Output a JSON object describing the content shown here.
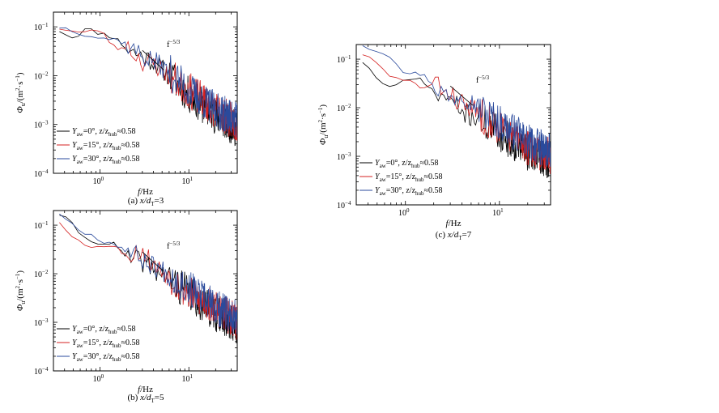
{
  "chart_data": [
    {
      "type": "line",
      "caption": "(a) x/d_T=3",
      "caption_text": {
        "prefix": "(a) ",
        "var": "x/d",
        "sub": "T",
        "suffix": "=3"
      },
      "xlabel": "f/Hz",
      "ylabel": "Φu/(m²·s⁻¹)",
      "xscale": "log",
      "yscale": "log",
      "xlim": [
        0.3,
        35
      ],
      "ylim": [
        0.0001,
        0.2
      ],
      "xticks": [
        "10^0",
        "10^1"
      ],
      "yticks": [
        "10^-4",
        "10^-3",
        "10^-2",
        "10^-1"
      ],
      "legend_position": "bottom-left",
      "annotation": {
        "text": "f^-5/3",
        "base": "f",
        "exp": "−5/3",
        "slope": -1.6667,
        "x1": 3.0,
        "x2": 5.2,
        "y1": 0.033
      },
      "series": [
        {
          "name": "Yaw=0°, z/zhub≈0.58",
          "label": {
            "pre": "Y",
            "sub1": "aw",
            "mid": "=0°, z/z",
            "sub2": "hub",
            "post": "≈0.58"
          },
          "color": "#000000",
          "seed": 11,
          "anchors": [
            [
              0.35,
              0.085
            ],
            [
              0.5,
              0.06
            ],
            [
              0.7,
              0.09
            ],
            [
              1.0,
              0.075
            ],
            [
              1.5,
              0.06
            ],
            [
              2.0,
              0.035
            ],
            [
              3.0,
              0.025
            ],
            [
              4.0,
              0.02
            ],
            [
              6.0,
              0.01
            ],
            [
              10.0,
              0.004
            ],
            [
              20.0,
              0.0015
            ],
            [
              35.0,
              0.0008
            ]
          ]
        },
        {
          "name": "Yaw=15°, z/zhub≈0.58",
          "label": {
            "pre": "Y",
            "sub1": "aw",
            "mid": "=15°, z/z",
            "sub2": "hub",
            "post": "≈0.58"
          },
          "color": "#d42020",
          "seed": 23,
          "anchors": [
            [
              0.35,
              0.095
            ],
            [
              0.5,
              0.08
            ],
            [
              0.7,
              0.075
            ],
            [
              1.0,
              0.09
            ],
            [
              1.5,
              0.035
            ],
            [
              2.0,
              0.04
            ],
            [
              3.0,
              0.02
            ],
            [
              4.0,
              0.018
            ],
            [
              6.0,
              0.01
            ],
            [
              10.0,
              0.005
            ],
            [
              20.0,
              0.002
            ],
            [
              35.0,
              0.001
            ]
          ]
        },
        {
          "name": "Yaw=30°, z/zhub≈0.58",
          "label": {
            "pre": "Y",
            "sub1": "aw",
            "mid": "=30°, z/z",
            "sub2": "hub",
            "post": "≈0.58"
          },
          "color": "#2a4a9c",
          "seed": 37,
          "anchors": [
            [
              0.35,
              0.1
            ],
            [
              0.5,
              0.085
            ],
            [
              0.7,
              0.07
            ],
            [
              1.0,
              0.06
            ],
            [
              1.5,
              0.055
            ],
            [
              2.0,
              0.045
            ],
            [
              3.0,
              0.025
            ],
            [
              4.0,
              0.02
            ],
            [
              6.0,
              0.012
            ],
            [
              10.0,
              0.005
            ],
            [
              20.0,
              0.002
            ],
            [
              35.0,
              0.0012
            ]
          ]
        }
      ]
    },
    {
      "type": "line",
      "caption": "(b) x/d_T=5",
      "caption_text": {
        "prefix": "(b) ",
        "var": "x/d",
        "sub": "T",
        "suffix": "=5"
      },
      "xlabel": "f/Hz",
      "ylabel": "Φu/(m²·s⁻¹)",
      "xscale": "log",
      "yscale": "log",
      "xlim": [
        0.3,
        35
      ],
      "ylim": [
        0.0001,
        0.2
      ],
      "xticks": [
        "10^0",
        "10^1"
      ],
      "yticks": [
        "10^-4",
        "10^-3",
        "10^-2",
        "10^-1"
      ],
      "legend_position": "bottom-left",
      "annotation": {
        "text": "f^-5/3",
        "base": "f",
        "exp": "−5/3",
        "slope": -1.6667,
        "x1": 3.0,
        "x2": 5.2,
        "y1": 0.028
      },
      "series": [
        {
          "name": "Yaw=0°, z/zhub≈0.58",
          "label": {
            "pre": "Y",
            "sub1": "aw",
            "mid": "=0°, z/z",
            "sub2": "hub",
            "post": "≈0.58"
          },
          "color": "#000000",
          "seed": 41,
          "anchors": [
            [
              0.35,
              0.17
            ],
            [
              0.5,
              0.1
            ],
            [
              0.7,
              0.05
            ],
            [
              1.0,
              0.045
            ],
            [
              1.5,
              0.04
            ],
            [
              2.0,
              0.02
            ],
            [
              3.0,
              0.018
            ],
            [
              4.0,
              0.012
            ],
            [
              6.0,
              0.008
            ],
            [
              10.0,
              0.004
            ],
            [
              20.0,
              0.0015
            ],
            [
              35.0,
              0.0008
            ]
          ]
        },
        {
          "name": "Yaw=15°, z/zhub≈0.58",
          "label": {
            "pre": "Y",
            "sub1": "aw",
            "mid": "=15°, z/z",
            "sub2": "hub",
            "post": "≈0.58"
          },
          "color": "#d42020",
          "seed": 53,
          "anchors": [
            [
              0.35,
              0.12
            ],
            [
              0.5,
              0.06
            ],
            [
              0.7,
              0.035
            ],
            [
              1.0,
              0.04
            ],
            [
              1.5,
              0.035
            ],
            [
              2.0,
              0.025
            ],
            [
              3.0,
              0.03
            ],
            [
              4.0,
              0.015
            ],
            [
              6.0,
              0.009
            ],
            [
              10.0,
              0.004
            ],
            [
              20.0,
              0.002
            ],
            [
              35.0,
              0.001
            ]
          ]
        },
        {
          "name": "Yaw=30°, z/zhub≈0.58",
          "label": {
            "pre": "Y",
            "sub1": "aw",
            "mid": "=30°, z/z",
            "sub2": "hub",
            "post": "≈0.58"
          },
          "color": "#2a4a9c",
          "seed": 67,
          "anchors": [
            [
              0.35,
              0.18
            ],
            [
              0.5,
              0.1
            ],
            [
              0.7,
              0.07
            ],
            [
              1.0,
              0.05
            ],
            [
              1.5,
              0.04
            ],
            [
              2.0,
              0.03
            ],
            [
              3.0,
              0.02
            ],
            [
              4.0,
              0.015
            ],
            [
              6.0,
              0.01
            ],
            [
              10.0,
              0.005
            ],
            [
              20.0,
              0.002
            ],
            [
              35.0,
              0.0012
            ]
          ]
        }
      ]
    },
    {
      "type": "line",
      "caption": "(c) x/d_T=7",
      "caption_text": {
        "prefix": "(c) ",
        "var": "x/d",
        "sub": "T",
        "suffix": "=7"
      },
      "xlabel": "f/Hz",
      "ylabel": "Φu/(m²·s⁻¹)",
      "xscale": "log",
      "yscale": "log",
      "xlim": [
        0.3,
        35
      ],
      "ylim": [
        0.0001,
        0.2
      ],
      "xticks": [
        "10^0",
        "10^1"
      ],
      "yticks": [
        "10^-4",
        "10^-3",
        "10^-2",
        "10^-1"
      ],
      "legend_position": "bottom-left",
      "annotation": {
        "text": "f^-5/3",
        "base": "f",
        "exp": "−5/3",
        "slope": -1.6667,
        "x1": 3.0,
        "x2": 5.2,
        "y1": 0.028
      },
      "series": [
        {
          "name": "Yaw=0°, z/zhub≈0.58",
          "label": {
            "pre": "Y",
            "sub1": "aw",
            "mid": "=0°, z/z",
            "sub2": "hub",
            "post": "≈0.58"
          },
          "color": "#000000",
          "seed": 71,
          "anchors": [
            [
              0.35,
              0.09
            ],
            [
              0.5,
              0.04
            ],
            [
              0.7,
              0.025
            ],
            [
              1.0,
              0.035
            ],
            [
              1.5,
              0.04
            ],
            [
              2.0,
              0.02
            ],
            [
              3.0,
              0.015
            ],
            [
              4.0,
              0.008
            ],
            [
              6.0,
              0.006
            ],
            [
              10.0,
              0.003
            ],
            [
              20.0,
              0.0012
            ],
            [
              35.0,
              0.0008
            ]
          ]
        },
        {
          "name": "Yaw=15°, z/zhub≈0.58",
          "label": {
            "pre": "Y",
            "sub1": "aw",
            "mid": "=15°, z/z",
            "sub2": "hub",
            "post": "≈0.58"
          },
          "color": "#d42020",
          "seed": 83,
          "anchors": [
            [
              0.35,
              0.13
            ],
            [
              0.5,
              0.08
            ],
            [
              0.7,
              0.04
            ],
            [
              1.0,
              0.04
            ],
            [
              1.5,
              0.025
            ],
            [
              2.0,
              0.03
            ],
            [
              3.0,
              0.02
            ],
            [
              4.0,
              0.012
            ],
            [
              6.0,
              0.008
            ],
            [
              10.0,
              0.004
            ],
            [
              20.0,
              0.0015
            ],
            [
              35.0,
              0.001
            ]
          ]
        },
        {
          "name": "Yaw=30°, z/zhub≈0.58",
          "label": {
            "pre": "Y",
            "sub1": "aw",
            "mid": "=30°, z/z",
            "sub2": "hub",
            "post": "≈0.58"
          },
          "color": "#2a4a9c",
          "seed": 97,
          "anchors": [
            [
              0.35,
              0.2
            ],
            [
              0.5,
              0.15
            ],
            [
              0.7,
              0.12
            ],
            [
              1.0,
              0.05
            ],
            [
              1.5,
              0.05
            ],
            [
              2.0,
              0.03
            ],
            [
              3.0,
              0.015
            ],
            [
              4.0,
              0.02
            ],
            [
              6.0,
              0.01
            ],
            [
              10.0,
              0.005
            ],
            [
              20.0,
              0.002
            ],
            [
              35.0,
              0.0012
            ]
          ]
        }
      ]
    }
  ]
}
